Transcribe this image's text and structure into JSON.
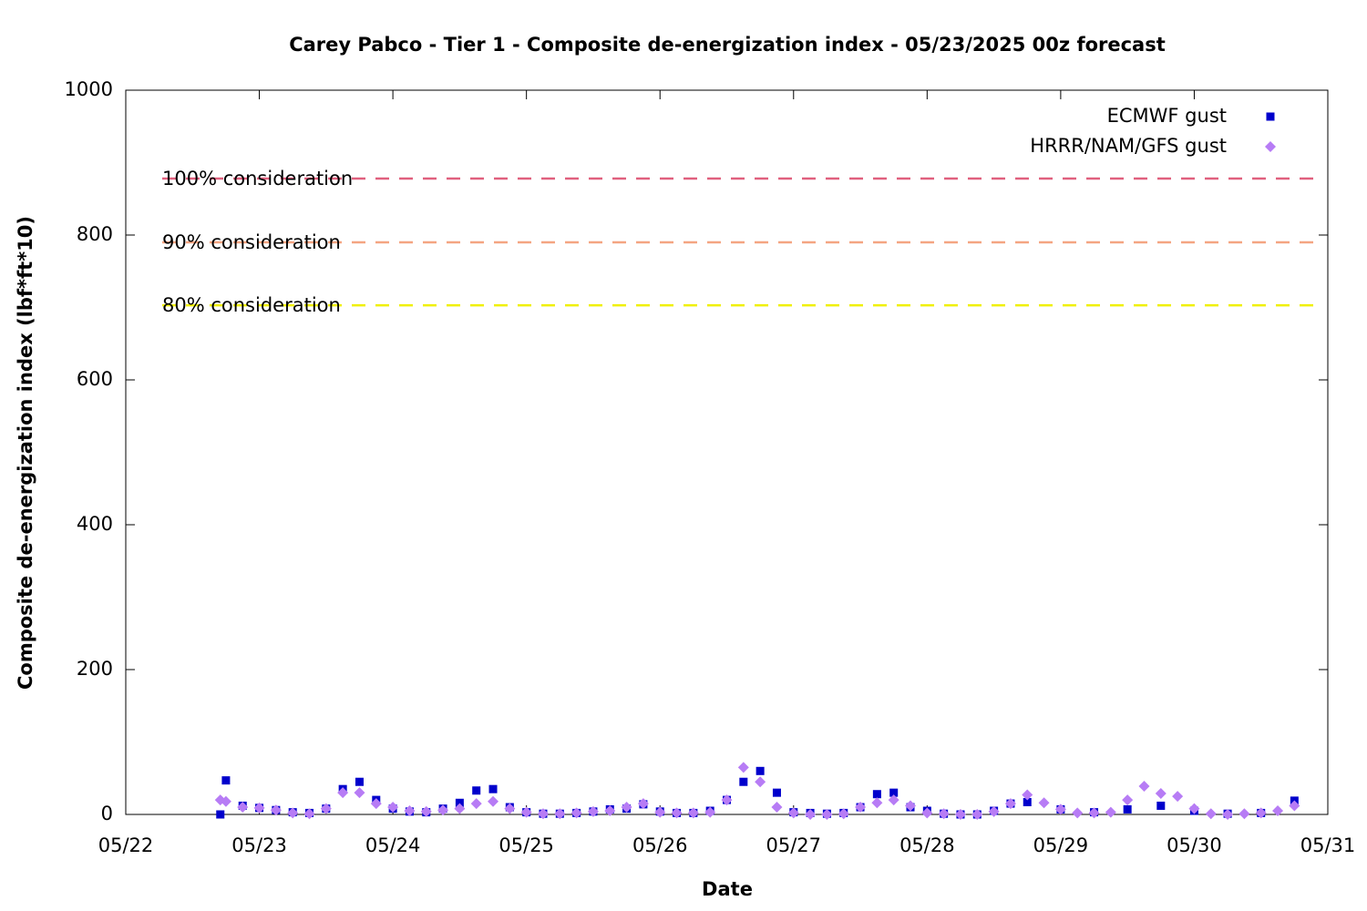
{
  "chart_data": {
    "type": "scatter",
    "title": "Carey Pabco - Tier 1 - Composite de-energization index - 05/23/2025 00z forecast",
    "x_label": "Date",
    "y_label": "Composite de-energization index (lbf*ft*10)",
    "xlim": [
      22,
      31
    ],
    "xticks": [
      {
        "value": 22,
        "label": "05/22"
      },
      {
        "value": 23,
        "label": "05/23"
      },
      {
        "value": 24,
        "label": "05/24"
      },
      {
        "value": 25,
        "label": "05/25"
      },
      {
        "value": 26,
        "label": "05/26"
      },
      {
        "value": 27,
        "label": "05/27"
      },
      {
        "value": 28,
        "label": "05/28"
      },
      {
        "value": 29,
        "label": "05/29"
      },
      {
        "value": 30,
        "label": "05/30"
      },
      {
        "value": 31,
        "label": "05/31"
      }
    ],
    "ylim": [
      0,
      1000
    ],
    "yticks": [
      0,
      200,
      400,
      600,
      800,
      1000
    ],
    "grid": false,
    "legend": "top-right",
    "thresholds": [
      {
        "label": "100% consideration",
        "value": 878,
        "color": "#e0607e"
      },
      {
        "label": "90% consideration",
        "value": 790,
        "color": "#f4a582"
      },
      {
        "label": "80% consideration",
        "value": 703,
        "color": "#f0f000"
      }
    ],
    "series": [
      {
        "name": "ECMWF gust",
        "color": "#0000cc",
        "marker": "square",
        "x": [
          22.708,
          22.75,
          22.875,
          23,
          23.125,
          23.25,
          23.375,
          23.5,
          23.625,
          23.75,
          23.875,
          24,
          24.125,
          24.25,
          24.375,
          24.5,
          24.625,
          24.75,
          24.875,
          25,
          25.125,
          25.25,
          25.375,
          25.5,
          25.625,
          25.75,
          25.875,
          26,
          26.125,
          26.25,
          26.375,
          26.5,
          26.625,
          26.75,
          26.875,
          27,
          27.125,
          27.25,
          27.375,
          27.5,
          27.625,
          27.75,
          27.875,
          28,
          28.125,
          28.25,
          28.375,
          28.5,
          28.625,
          28.75,
          29,
          29.25,
          29.5,
          29.75,
          30,
          30.25,
          30.5,
          30.75
        ],
        "values": [
          0,
          47,
          12,
          9,
          6,
          3,
          2,
          8,
          35,
          45,
          20,
          8,
          4,
          3,
          8,
          16,
          33,
          35,
          10,
          3,
          1,
          1,
          2,
          4,
          7,
          8,
          14,
          4,
          2,
          2,
          5,
          20,
          45,
          60,
          30,
          3,
          2,
          1,
          2,
          10,
          28,
          30,
          10,
          5,
          1,
          0,
          0,
          5,
          15,
          17,
          7,
          3,
          7,
          12,
          5,
          1,
          2,
          19
        ]
      },
      {
        "name": "HRRR/NAM/GFS gust",
        "color": "#b77cf5",
        "marker": "diamond",
        "x": [
          22.708,
          22.75,
          22.875,
          23,
          23.125,
          23.25,
          23.375,
          23.5,
          23.625,
          23.75,
          23.875,
          24,
          24.125,
          24.25,
          24.375,
          24.5,
          24.625,
          24.75,
          24.875,
          25,
          25.125,
          25.25,
          25.375,
          25.5,
          25.625,
          25.75,
          25.875,
          26,
          26.125,
          26.25,
          26.375,
          26.5,
          26.625,
          26.75,
          26.875,
          27,
          27.125,
          27.25,
          27.375,
          27.5,
          27.625,
          27.75,
          27.875,
          28,
          28.125,
          28.25,
          28.375,
          28.5,
          28.625,
          28.75,
          28.875,
          29,
          29.125,
          29.25,
          29.375,
          29.5,
          29.625,
          29.75,
          29.875,
          30,
          30.125,
          30.25,
          30.375,
          30.5,
          30.625,
          30.75
        ],
        "values": [
          20,
          18,
          10,
          9,
          6,
          2,
          1,
          8,
          30,
          30,
          15,
          10,
          5,
          4,
          6,
          8,
          15,
          18,
          8,
          3,
          1,
          1,
          2,
          4,
          5,
          10,
          15,
          3,
          2,
          2,
          3,
          20,
          65,
          45,
          10,
          2,
          0,
          0,
          1,
          10,
          16,
          20,
          12,
          2,
          1,
          0,
          0,
          4,
          15,
          27,
          16,
          7,
          2,
          2,
          3,
          20,
          39,
          29,
          25,
          8,
          1,
          0,
          1,
          2,
          5,
          12
        ]
      }
    ]
  }
}
